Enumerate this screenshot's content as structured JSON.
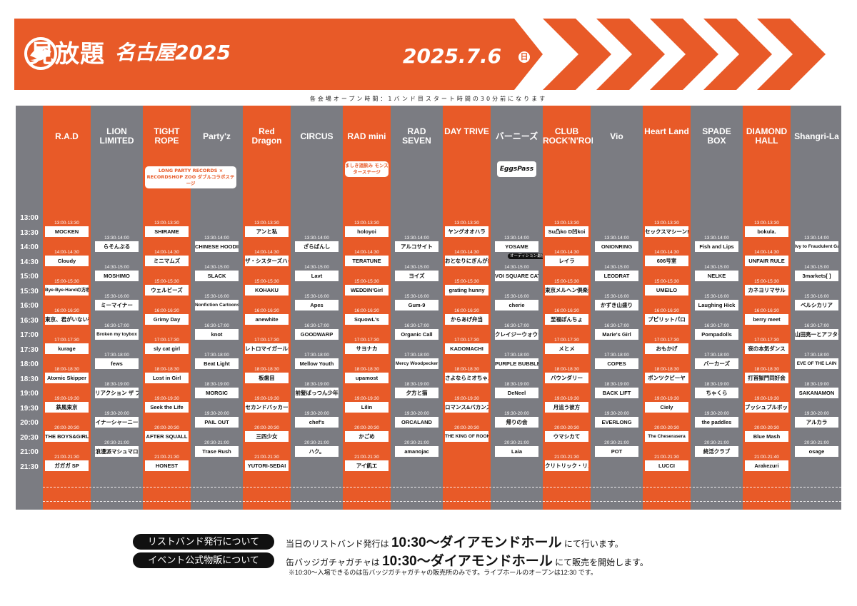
{
  "header": {
    "brand": "見放題",
    "city": "名古屋2025",
    "date": "2025.7.6",
    "day": "日",
    "accent": "#e85a28"
  },
  "note": "各会場オープン時間：1バンド目スタート時間の30分前になります",
  "times": [
    "13:00",
    "13:30",
    "14:00",
    "14:30",
    "15:00",
    "15:30",
    "16:00",
    "16:30",
    "17:00",
    "17:30",
    "18:00",
    "18:30",
    "19:00",
    "19:30",
    "20:00",
    "20:30",
    "21:00",
    "21:30"
  ],
  "venues": [
    {
      "name": "R.A.D",
      "color": "orange",
      "slots": [
        {
          "t": "13:00-13:30",
          "a": "MOCKEN"
        },
        {
          "t": "14:00-14:30",
          "a": "Cloudy"
        },
        {
          "t": "15:00-15:30",
          "a": "Bye-Bye-Handの方程式"
        },
        {
          "t": "16:00-16:30",
          "a": "東京、君がいない街"
        },
        {
          "t": "17:00-17:30",
          "a": "kurage"
        },
        {
          "t": "18:00-18:30",
          "a": "Atomic Skipper"
        },
        {
          "t": "19:00-19:30",
          "a": "鉄風東京"
        },
        {
          "t": "20:00-20:30",
          "a": "THE BOYS&GIRLS"
        },
        {
          "t": "21:00-21:30",
          "a": "ガガガ SP"
        }
      ]
    },
    {
      "name": "LION LIMITED",
      "color": "gray",
      "slots": [
        {
          "t": "13:30-14:00",
          "a": "らそんぶる"
        },
        {
          "t": "14:30-15:00",
          "a": "MOSHIMO"
        },
        {
          "t": "15:30-16:00",
          "a": "ミーマイナー"
        },
        {
          "t": "16:30-17:00",
          "a": "Broken my toybox"
        },
        {
          "t": "17:30-18:00",
          "a": "fews"
        },
        {
          "t": "18:30-19:00",
          "a": "リアクション ザ ブッタ"
        },
        {
          "t": "19:30-20:00",
          "a": "イナーシャーニー"
        },
        {
          "t": "20:30-21:00",
          "a": "浪漫派マシュマロ"
        }
      ]
    },
    {
      "name": "TIGHT ROPE",
      "color": "orange",
      "sub": "LONG PARTY RECORDS × RECORDSHOP ZOO ダブルコラボステージ",
      "slots": [
        {
          "t": "13:00-13:30",
          "a": "SHIRAME"
        },
        {
          "t": "14:00-14:30",
          "a": "ミニマムズ"
        },
        {
          "t": "15:00-15:30",
          "a": "ウェルビーズ"
        },
        {
          "t": "16:00-16:30",
          "a": "Grimy Day"
        },
        {
          "t": "17:00-17:30",
          "a": "sly cat girl"
        },
        {
          "t": "18:00-18:30",
          "a": "Lost in Girl"
        },
        {
          "t": "19:00-19:30",
          "a": "Seek the Life"
        },
        {
          "t": "20:00-20:30",
          "a": "AFTER SQUALL"
        },
        {
          "t": "21:00-21:30",
          "a": "HONEST"
        }
      ]
    },
    {
      "name": "Party'z",
      "color": "gray",
      "slots": [
        {
          "t": "13:30-14:00",
          "a": "CHINESE HOODIE"
        },
        {
          "t": "14:30-15:00",
          "a": "SLACK"
        },
        {
          "t": "15:30-16:00",
          "a": "Nonfiction Cartoons"
        },
        {
          "t": "16:30-17:00",
          "a": "knot"
        },
        {
          "t": "17:30-18:00",
          "a": "Beat Light"
        },
        {
          "t": "18:30-19:00",
          "a": "MORGIC"
        },
        {
          "t": "19:30-20:00",
          "a": "PAIL OUT"
        },
        {
          "t": "20:30-21:00",
          "a": "Trase Rush"
        }
      ]
    },
    {
      "name": "Red Dragon",
      "color": "orange",
      "slots": [
        {
          "t": "13:00-13:30",
          "a": "アンと私"
        },
        {
          "t": "14:00-14:30",
          "a": "ザ・シスターズハイ"
        },
        {
          "t": "15:00-15:30",
          "a": "KOHAKU"
        },
        {
          "t": "16:00-16:30",
          "a": "anewhite"
        },
        {
          "t": "17:00-17:30",
          "a": "レトロマイガール!!"
        },
        {
          "t": "18:00-18:30",
          "a": "板歯目"
        },
        {
          "t": "19:00-19:30",
          "a": "セカンドバッカー"
        },
        {
          "t": "20:00-20:30",
          "a": "三四少女"
        },
        {
          "t": "21:00-21:30",
          "a": "YUTORI-SEDAI"
        }
      ]
    },
    {
      "name": "CIRCUS",
      "color": "gray",
      "slots": [
        {
          "t": "13:30-14:00",
          "a": "ざらばんし"
        },
        {
          "t": "14:30-15:00",
          "a": "Lavt"
        },
        {
          "t": "15:30-16:00",
          "a": "Apes"
        },
        {
          "t": "16:30-17:00",
          "a": "GOODWARP"
        },
        {
          "t": "17:30-18:00",
          "a": "Mellow Youth"
        },
        {
          "t": "18:30-19:00",
          "a": "前髪ぱっつん少年"
        },
        {
          "t": "19:30-20:00",
          "a": "chef's"
        },
        {
          "t": "20:30-21:00",
          "a": "ハク。"
        }
      ]
    },
    {
      "name": "RAD mini",
      "color": "orange",
      "sub": "ましき酒飲み モンスターステージ",
      "slots": [
        {
          "t": "13:00-13:30",
          "a": "holoyoi"
        },
        {
          "t": "14:00-14:30",
          "a": "TERATUNE"
        },
        {
          "t": "15:00-15:30",
          "a": "WEDDIN'Girl"
        },
        {
          "t": "16:00-16:30",
          "a": "SquowL's"
        },
        {
          "t": "17:00-17:30",
          "a": "サヨナカ"
        },
        {
          "t": "18:00-18:30",
          "a": "upamost"
        },
        {
          "t": "19:00-19:30",
          "a": "Lilin"
        },
        {
          "t": "20:00-20:30",
          "a": "かごめ"
        },
        {
          "t": "21:00-21:30",
          "a": "アイ飢エ"
        }
      ]
    },
    {
      "name": "RAD SEVEN",
      "color": "gray",
      "slots": [
        {
          "t": "13:30-14:00",
          "a": "アルコサイト"
        },
        {
          "t": "14:30-15:00",
          "a": "ヨイズ"
        },
        {
          "t": "15:30-16:00",
          "a": "Gum-9"
        },
        {
          "t": "16:30-17:00",
          "a": "Organic Call"
        },
        {
          "t": "17:30-18:00",
          "a": "Mercy Woodpecker"
        },
        {
          "t": "18:30-19:00",
          "a": "夕方と猫"
        },
        {
          "t": "19:30-20:00",
          "a": "ORCALAND"
        },
        {
          "t": "20:30-21:00",
          "a": "amanojac"
        }
      ]
    },
    {
      "name": "DAY TRIVE",
      "color": "orange",
      "slots": [
        {
          "t": "13:00-13:30",
          "a": "ヤングオオハラ"
        },
        {
          "t": "14:00-14:30",
          "a": "おとなりにぎんが計画"
        },
        {
          "t": "15:00-15:30",
          "a": "grating hunny"
        },
        {
          "t": "16:00-16:30",
          "a": "からあげ弁当"
        },
        {
          "t": "17:00-17:30",
          "a": "KADOMACHI"
        },
        {
          "t": "18:00-18:30",
          "a": "さよならミオちゃん"
        },
        {
          "t": "19:00-19:30",
          "a": "ロマンス&バカンス"
        },
        {
          "t": "20:00-20:30",
          "a": "THE KING OF ROOKIE"
        }
      ]
    },
    {
      "name": "バーニーズ",
      "color": "gray",
      "sub": "EggsPass",
      "slots": [
        {
          "t": "13:30-14:00",
          "a": "YOSAME"
        },
        {
          "t": "14:30-15:00",
          "a": "VOI SQUARE CAT"
        },
        {
          "t": "15:30-16:00",
          "a": "cherie"
        },
        {
          "t": "16:30-17:00",
          "a": "クレイジーウォウウォ!!"
        },
        {
          "t": "17:30-18:00",
          "a": "PURPLE BUBBLE"
        },
        {
          "t": "18:30-19:00",
          "a": "DeNeel"
        },
        {
          "t": "19:30-20:00",
          "a": "帰りの会"
        },
        {
          "t": "20:30-21:00",
          "a": "Laia"
        }
      ]
    },
    {
      "name": "CLUB ROCK'N'ROLL",
      "color": "orange",
      "slots": [
        {
          "t": "13:00-13:30",
          "a": "Su凸ko D凹koi"
        },
        {
          "t": "14:00-14:30",
          "a": "レイラ"
        },
        {
          "t": "15:00-15:30",
          "a": "東京メルヘン倶楽部"
        },
        {
          "t": "16:00-16:30",
          "a": "至福ぽんちょ"
        },
        {
          "t": "17:00-17:30",
          "a": "メとメ"
        },
        {
          "t": "18:00-18:30",
          "a": "バウンダリー"
        },
        {
          "t": "19:00-19:30",
          "a": "月追う彼方"
        },
        {
          "t": "20:00-20:30",
          "a": "ウマシカて"
        },
        {
          "t": "21:00-21:30",
          "a": "クリトリック・リス"
        }
      ]
    },
    {
      "name": "Vio",
      "color": "gray",
      "slots": [
        {
          "t": "13:30-14:00",
          "a": "ONIONRING"
        },
        {
          "t": "14:30-15:00",
          "a": "LEODRAT"
        },
        {
          "t": "15:30-16:00",
          "a": "かずき山盛り"
        },
        {
          "t": "16:30-17:00",
          "a": "Marie's Girl"
        },
        {
          "t": "17:30-18:00",
          "a": "COPES"
        },
        {
          "t": "18:30-19:00",
          "a": "BACK LIFT"
        },
        {
          "t": "19:30-20:00",
          "a": "EVERLONG"
        },
        {
          "t": "20:30-21:00",
          "a": "POT"
        }
      ]
    },
    {
      "name": "Heart Land",
      "color": "orange",
      "slots": [
        {
          "t": "13:00-13:30",
          "a": "セックスマシーン!!"
        },
        {
          "t": "14:00-14:30",
          "a": "606号室"
        },
        {
          "t": "15:00-15:30",
          "a": "UMEILO"
        },
        {
          "t": "16:00-16:30",
          "a": "プピリットパロ"
        },
        {
          "t": "17:00-17:30",
          "a": "おもかげ"
        },
        {
          "t": "18:00-18:30",
          "a": "ポンツクピーヤ"
        },
        {
          "t": "19:00-19:30",
          "a": "Ciely"
        },
        {
          "t": "20:00-20:30",
          "a": "The Cheserasera"
        },
        {
          "t": "21:00-21:30",
          "a": "LUCCI"
        }
      ]
    },
    {
      "name": "SPADE BOX",
      "color": "gray",
      "slots": [
        {
          "t": "13:30-14:00",
          "a": "Fish and Lips"
        },
        {
          "t": "14:30-15:00",
          "a": "NELKE"
        },
        {
          "t": "15:30-16:00",
          "a": "Laughing Hick"
        },
        {
          "t": "16:30-17:00",
          "a": "Pompadolls"
        },
        {
          "t": "17:30-18:00",
          "a": "バーカーズ"
        },
        {
          "t": "18:30-19:00",
          "a": "ちゃくら"
        },
        {
          "t": "19:30-20:00",
          "a": "the paddles"
        },
        {
          "t": "20:30-21:00",
          "a": "終活クラブ"
        }
      ]
    },
    {
      "name": "DIAMOND HALL",
      "color": "orange",
      "slots": [
        {
          "t": "13:00-13:30",
          "a": "bokula."
        },
        {
          "t": "14:00-14:30",
          "a": "UNFAIR RULE"
        },
        {
          "t": "15:00-15:30",
          "a": "カネヨリマサル"
        },
        {
          "t": "16:00-16:30",
          "a": "berry meet"
        },
        {
          "t": "17:00-17:30",
          "a": "夜の本気ダンス"
        },
        {
          "t": "18:00-18:30",
          "a": "打首獄門同好会"
        },
        {
          "t": "19:00-19:30",
          "a": "ブッシュプルボット"
        },
        {
          "t": "20:00-20:30",
          "a": "Blue Mash"
        },
        {
          "t": "21:00-21:40",
          "a": "Arakezuri"
        }
      ]
    },
    {
      "name": "Shangri-La",
      "color": "gray",
      "slots": [
        {
          "t": "13:30-14:00",
          "a": "Ivy to Fraudulent Game"
        },
        {
          "t": "14:30-15:00",
          "a": "3markets[ ]"
        },
        {
          "t": "15:30-16:00",
          "a": "ベルシカリア"
        },
        {
          "t": "16:30-17:00",
          "a": "山田亮一とアフターソウル"
        },
        {
          "t": "17:30-18:00",
          "a": "EVE OF THE LAIN"
        },
        {
          "t": "18:30-19:00",
          "a": "SAKANAMON"
        },
        {
          "t": "19:30-20:00",
          "a": "アルカラ"
        },
        {
          "t": "20:30-21:00",
          "a": "osage"
        }
      ]
    }
  ],
  "audition": "オーディション最優秀",
  "footer": {
    "rows": [
      {
        "label": "リストバンド発行について",
        "pre": "当日のリストバンド発行は",
        "big": "10:30〜ダイアモンドホール",
        "post": "にて行います。"
      },
      {
        "label": "イベント公式物販について",
        "pre": "缶バッジガチャガチャは",
        "big": "10:30〜ダイアモンドホール",
        "post": "にて販売を開始します。"
      }
    ],
    "small": "※10:30〜入場できるのは缶バッジガチャガチャの販売所のみです。ライブホールのオープンは12:30 です。"
  }
}
